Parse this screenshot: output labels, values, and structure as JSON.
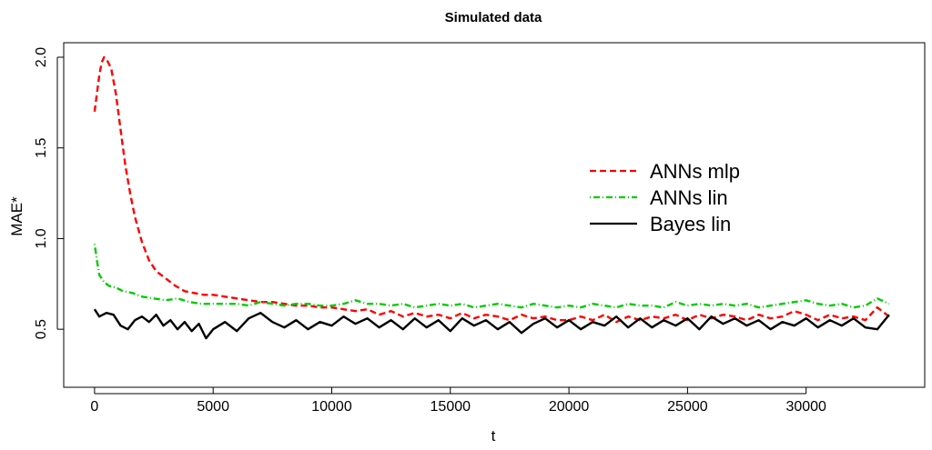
{
  "chart_data": {
    "type": "line",
    "title": "Simulated data",
    "xlabel": "t",
    "ylabel": "MAE*",
    "xlim": [
      -1300,
      35000
    ],
    "ylim": [
      0.18,
      2.08
    ],
    "xticks": [
      0,
      5000,
      10000,
      15000,
      20000,
      25000,
      30000
    ],
    "xtick_labels": [
      "0",
      "5000",
      "10000",
      "15000",
      "20000",
      "25000",
      "30000"
    ],
    "yticks": [
      0.5,
      1.0,
      1.5,
      2.0
    ],
    "ytick_labels": [
      "0.5",
      "1.0",
      "1.5",
      "2.0"
    ],
    "grid": false,
    "legend_position": "right",
    "series": [
      {
        "name": "ANNs mlp",
        "color": "#ff0000",
        "style": "dashed",
        "x": [
          0,
          100,
          200,
          300,
          400,
          500,
          700,
          900,
          1100,
          1300,
          1500,
          1700,
          2000,
          2300,
          2600,
          3000,
          3400,
          3800,
          4200,
          4600,
          5000,
          5500,
          6000,
          6500,
          7000,
          7500,
          8000,
          8500,
          9000,
          9500,
          10000,
          10500,
          11000,
          11500,
          12000,
          12500,
          13000,
          13500,
          14000,
          14500,
          15000,
          15500,
          16000,
          16500,
          17000,
          17500,
          18000,
          18500,
          19000,
          19500,
          20000,
          20500,
          21000,
          21500,
          22000,
          22500,
          23000,
          23500,
          24000,
          24500,
          25000,
          25500,
          26000,
          26500,
          27000,
          27500,
          28000,
          28500,
          29000,
          29500,
          30000,
          30500,
          31000,
          31500,
          32000,
          32500,
          33000,
          33500
        ],
        "values": [
          1.7,
          1.8,
          1.9,
          1.97,
          2.0,
          1.99,
          1.94,
          1.8,
          1.6,
          1.4,
          1.25,
          1.12,
          0.98,
          0.88,
          0.82,
          0.78,
          0.74,
          0.71,
          0.7,
          0.69,
          0.69,
          0.68,
          0.67,
          0.66,
          0.65,
          0.65,
          0.64,
          0.63,
          0.63,
          0.62,
          0.62,
          0.61,
          0.6,
          0.61,
          0.58,
          0.6,
          0.57,
          0.59,
          0.57,
          0.58,
          0.56,
          0.59,
          0.56,
          0.58,
          0.57,
          0.55,
          0.58,
          0.56,
          0.57,
          0.55,
          0.55,
          0.57,
          0.55,
          0.58,
          0.54,
          0.57,
          0.55,
          0.57,
          0.56,
          0.58,
          0.55,
          0.58,
          0.56,
          0.58,
          0.57,
          0.55,
          0.58,
          0.56,
          0.57,
          0.6,
          0.58,
          0.55,
          0.58,
          0.56,
          0.57,
          0.55,
          0.62,
          0.57
        ]
      },
      {
        "name": "ANNs lin",
        "color": "#00cc00",
        "style": "dotdash",
        "x": [
          0,
          100,
          200,
          400,
          600,
          900,
          1200,
          1600,
          2000,
          2500,
          3000,
          3500,
          4000,
          4500,
          5000,
          5500,
          6000,
          6500,
          7000,
          7500,
          8000,
          8500,
          9000,
          9500,
          10000,
          10500,
          11000,
          11500,
          12000,
          12500,
          13000,
          13500,
          14000,
          14500,
          15000,
          15500,
          16000,
          16500,
          17000,
          17500,
          18000,
          18500,
          19000,
          19500,
          20000,
          20500,
          21000,
          21500,
          22000,
          22500,
          23000,
          23500,
          24000,
          24500,
          25000,
          25500,
          26000,
          26500,
          27000,
          27500,
          28000,
          28500,
          29000,
          29500,
          30000,
          30500,
          31000,
          31500,
          32000,
          32500,
          33000,
          33500
        ],
        "values": [
          0.97,
          0.88,
          0.8,
          0.76,
          0.74,
          0.73,
          0.71,
          0.7,
          0.68,
          0.67,
          0.66,
          0.67,
          0.65,
          0.64,
          0.64,
          0.64,
          0.64,
          0.63,
          0.65,
          0.64,
          0.63,
          0.64,
          0.64,
          0.63,
          0.63,
          0.64,
          0.66,
          0.64,
          0.64,
          0.63,
          0.64,
          0.62,
          0.63,
          0.64,
          0.63,
          0.64,
          0.62,
          0.63,
          0.64,
          0.63,
          0.62,
          0.64,
          0.63,
          0.62,
          0.63,
          0.62,
          0.64,
          0.63,
          0.62,
          0.64,
          0.63,
          0.63,
          0.62,
          0.65,
          0.63,
          0.64,
          0.63,
          0.64,
          0.63,
          0.64,
          0.62,
          0.63,
          0.64,
          0.65,
          0.66,
          0.64,
          0.63,
          0.64,
          0.62,
          0.63,
          0.67,
          0.64
        ]
      },
      {
        "name": "Bayes lin",
        "color": "#000000",
        "style": "solid",
        "x": [
          0,
          200,
          500,
          800,
          1100,
          1400,
          1700,
          2000,
          2300,
          2600,
          2900,
          3200,
          3500,
          3800,
          4100,
          4400,
          4700,
          5000,
          5500,
          6000,
          6500,
          7000,
          7500,
          8000,
          8500,
          9000,
          9500,
          10000,
          10500,
          11000,
          11500,
          12000,
          12500,
          13000,
          13500,
          14000,
          14500,
          15000,
          15500,
          16000,
          16500,
          17000,
          17500,
          18000,
          18500,
          19000,
          19500,
          20000,
          20500,
          21000,
          21500,
          22000,
          22500,
          23000,
          23500,
          24000,
          24500,
          25000,
          25500,
          26000,
          26500,
          27000,
          27500,
          28000,
          28500,
          29000,
          29500,
          30000,
          30500,
          31000,
          31500,
          32000,
          32500,
          33000,
          33500
        ],
        "values": [
          0.61,
          0.57,
          0.59,
          0.58,
          0.52,
          0.5,
          0.55,
          0.57,
          0.54,
          0.58,
          0.52,
          0.55,
          0.5,
          0.54,
          0.49,
          0.53,
          0.45,
          0.5,
          0.54,
          0.49,
          0.56,
          0.59,
          0.54,
          0.51,
          0.55,
          0.5,
          0.54,
          0.52,
          0.57,
          0.53,
          0.56,
          0.51,
          0.55,
          0.5,
          0.56,
          0.51,
          0.55,
          0.49,
          0.56,
          0.52,
          0.55,
          0.5,
          0.54,
          0.48,
          0.53,
          0.56,
          0.51,
          0.55,
          0.5,
          0.54,
          0.52,
          0.57,
          0.51,
          0.56,
          0.51,
          0.55,
          0.52,
          0.56,
          0.5,
          0.57,
          0.53,
          0.56,
          0.52,
          0.55,
          0.5,
          0.54,
          0.52,
          0.56,
          0.51,
          0.55,
          0.52,
          0.56,
          0.51,
          0.5,
          0.58
        ]
      }
    ]
  }
}
